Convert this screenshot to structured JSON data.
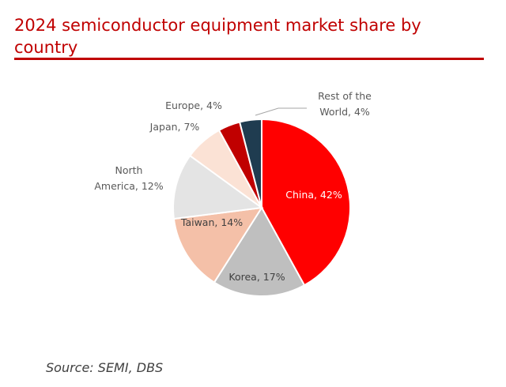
{
  "chart_data": {
    "type": "pie",
    "title": "2024 semiconductor equipment market share by country",
    "unit": "%",
    "slices": [
      {
        "label": "China",
        "value": 42,
        "color": "#ff0000",
        "label_text": "China, 42%",
        "label_color": "#ffffff"
      },
      {
        "label": "Korea",
        "value": 17,
        "color": "#bfbfbf",
        "label_text": "Korea, 17%",
        "label_color": "#404040"
      },
      {
        "label": "Taiwan",
        "value": 14,
        "color": "#f4c0a8",
        "label_text": "Taiwan, 14%",
        "label_color": "#404040"
      },
      {
        "label": "North America",
        "value": 12,
        "color": "#e4e4e4",
        "label_text": "North America, 12%",
        "label_color": "#595959"
      },
      {
        "label": "Japan",
        "value": 7,
        "color": "#fbe2d5",
        "label_text": "Japan, 7%",
        "label_color": "#595959"
      },
      {
        "label": "Europe",
        "value": 4,
        "color": "#c00000",
        "label_text": "Europe, 4%",
        "label_color": "#595959"
      },
      {
        "label": "Rest of the World",
        "value": 4,
        "color": "#1f3c50",
        "label_text": "Rest of the World, 4%",
        "label_color": "#595959"
      }
    ]
  },
  "source": "Source: SEMI, DBS"
}
